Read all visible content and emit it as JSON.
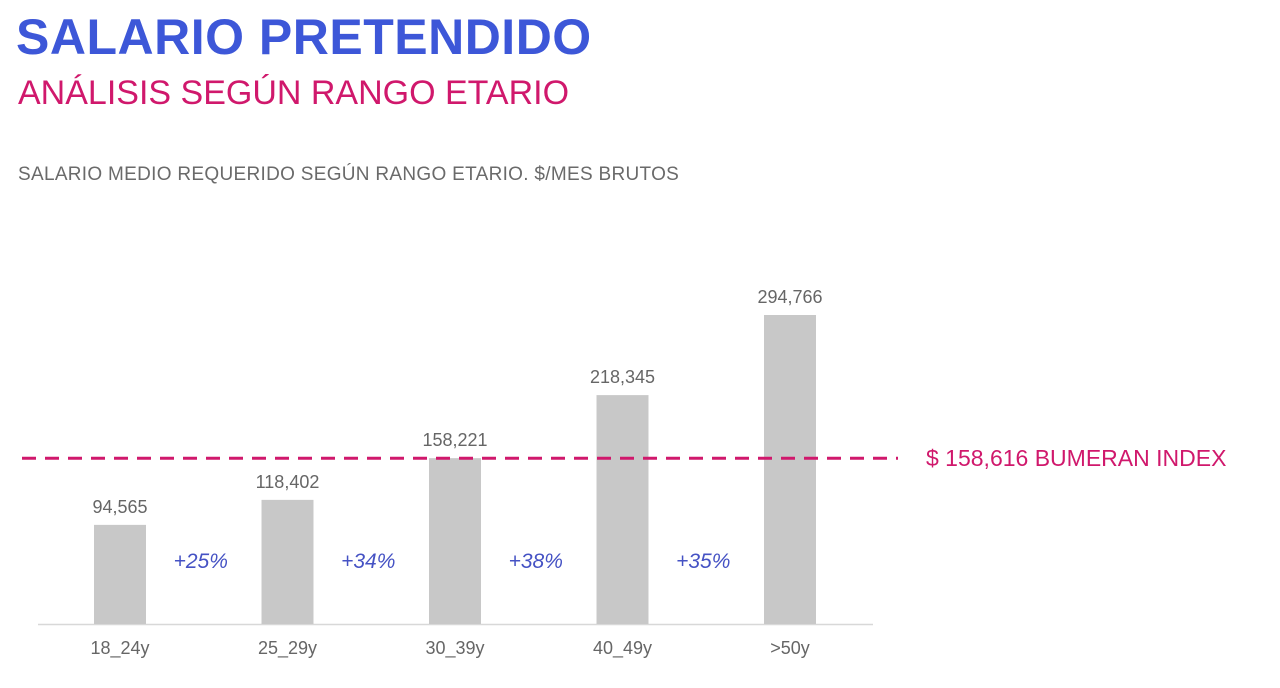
{
  "header": {
    "title": "SALARIO PRETENDIDO",
    "subtitle": "ANÁLISIS SEGÚN RANGO ETARIO",
    "chart_caption": "SALARIO MEDIO REQUERIDO SEGÚN RANGO ETARIO. $/MES BRUTOS"
  },
  "colors": {
    "title": "#3d57d8",
    "accent": "#d0186c",
    "bar": "#c8c8c8",
    "growth_text": "#4552c4"
  },
  "chart_data": {
    "type": "bar",
    "title": "SALARIO MEDIO REQUERIDO SEGÚN RANGO ETARIO. $/MES BRUTOS",
    "categories": [
      "18_24y",
      "25_29y",
      "30_39y",
      "40_49y",
      ">50y"
    ],
    "values": [
      94565,
      118402,
      158221,
      218345,
      294766
    ],
    "value_labels": [
      "94,565",
      "118,402",
      "158,221",
      "218,345",
      "294,766"
    ],
    "growth_labels": [
      "+25%",
      "+34%",
      "+38%",
      "+35%"
    ],
    "reference_line": {
      "value": 158616,
      "label": "$ 158,616 BUMERAN INDEX",
      "style": "dashed"
    },
    "ylim": [
      0,
      294766
    ],
    "grid": false,
    "legend": "none"
  }
}
